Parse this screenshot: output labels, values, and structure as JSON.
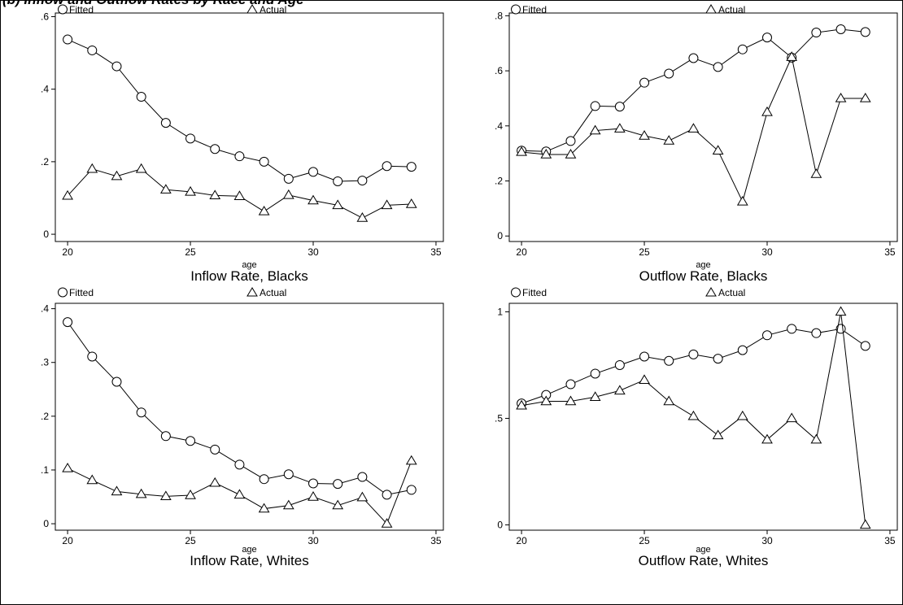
{
  "figure_title": "(b) Inflow and Outflow Rates by Race and Age",
  "axis_label_x": "age",
  "legend": {
    "fitted": "Fitted",
    "actual": "Actual"
  },
  "chart_data": [
    {
      "type": "line",
      "title": "Inflow Rate, Blacks",
      "xlabel": "age",
      "ylabel": "",
      "xlim": [
        19.5,
        35.3
      ],
      "ylim": [
        -0.02,
        0.61
      ],
      "x_ticks": [
        20,
        25,
        30,
        35
      ],
      "y_ticks": [
        0,
        0.2,
        0.4,
        0.6
      ],
      "y_tick_labels": [
        "0",
        ".2",
        ".4",
        ".6"
      ],
      "legend_position": "top",
      "grid": false,
      "x": [
        20,
        21,
        22,
        23,
        24,
        25,
        26,
        27,
        28,
        29,
        30,
        31,
        32,
        33,
        34
      ],
      "series": [
        {
          "name": "Fitted",
          "marker": "circle",
          "values": [
            0.537,
            0.507,
            0.463,
            0.379,
            0.307,
            0.264,
            0.235,
            0.215,
            0.2,
            0.153,
            0.172,
            0.146,
            0.148,
            0.188,
            0.186
          ]
        },
        {
          "name": "Actual",
          "marker": "triangle",
          "values": [
            0.106,
            0.18,
            0.16,
            0.18,
            0.123,
            0.117,
            0.107,
            0.105,
            0.063,
            0.108,
            0.093,
            0.08,
            0.045,
            0.08,
            0.083
          ]
        }
      ]
    },
    {
      "type": "line",
      "title": "Outflow Rate, Blacks",
      "xlabel": "age",
      "ylabel": "",
      "xlim": [
        19.5,
        35.3
      ],
      "ylim": [
        -0.02,
        0.81
      ],
      "x_ticks": [
        20,
        25,
        30,
        35
      ],
      "y_ticks": [
        0,
        0.2,
        0.4,
        0.6,
        0.8
      ],
      "y_tick_labels": [
        "0",
        ".2",
        ".4",
        ".6",
        ".8"
      ],
      "legend_position": "top",
      "grid": false,
      "x": [
        20,
        21,
        22,
        23,
        24,
        25,
        26,
        27,
        28,
        29,
        30,
        31,
        32,
        33,
        34
      ],
      "series": [
        {
          "name": "Fitted",
          "marker": "circle",
          "values": [
            0.31,
            0.307,
            0.345,
            0.472,
            0.47,
            0.557,
            0.59,
            0.646,
            0.614,
            0.678,
            0.721,
            0.648,
            0.739,
            0.751,
            0.741
          ]
        },
        {
          "name": "Actual",
          "marker": "triangle",
          "values": [
            0.305,
            0.296,
            0.296,
            0.383,
            0.39,
            0.364,
            0.346,
            0.39,
            0.31,
            0.125,
            0.45,
            0.65,
            0.225,
            0.5,
            0.5
          ]
        }
      ]
    },
    {
      "type": "line",
      "title": "Inflow Rate, Whites",
      "xlabel": "age",
      "ylabel": "",
      "xlim": [
        19.5,
        35.3
      ],
      "ylim": [
        -0.012,
        0.41
      ],
      "x_ticks": [
        20,
        25,
        30,
        35
      ],
      "y_ticks": [
        0,
        0.1,
        0.2,
        0.3,
        0.4
      ],
      "y_tick_labels": [
        "0",
        ".1",
        ".2",
        ".3",
        ".4"
      ],
      "legend_position": "top",
      "grid": false,
      "x": [
        20,
        21,
        22,
        23,
        24,
        25,
        26,
        27,
        28,
        29,
        30,
        31,
        32,
        33,
        34
      ],
      "series": [
        {
          "name": "Fitted",
          "marker": "circle",
          "values": [
            0.375,
            0.311,
            0.264,
            0.207,
            0.163,
            0.154,
            0.138,
            0.11,
            0.083,
            0.092,
            0.075,
            0.074,
            0.087,
            0.054,
            0.063
          ]
        },
        {
          "name": "Actual",
          "marker": "triangle",
          "values": [
            0.103,
            0.081,
            0.06,
            0.055,
            0.051,
            0.053,
            0.076,
            0.054,
            0.028,
            0.034,
            0.05,
            0.034,
            0.049,
            0.0,
            0.117
          ]
        }
      ]
    },
    {
      "type": "line",
      "title": "Outflow Rate, Whites",
      "xlabel": "age",
      "ylabel": "",
      "xlim": [
        19.5,
        35.3
      ],
      "ylim": [
        -0.025,
        1.04
      ],
      "x_ticks": [
        20,
        25,
        30,
        35
      ],
      "y_ticks": [
        0,
        0.5,
        1
      ],
      "y_tick_labels": [
        "0",
        ".5",
        "1"
      ],
      "legend_position": "top",
      "grid": false,
      "x": [
        20,
        21,
        22,
        23,
        24,
        25,
        26,
        27,
        28,
        29,
        30,
        31,
        32,
        33,
        34
      ],
      "series": [
        {
          "name": "Fitted",
          "marker": "circle",
          "values": [
            0.57,
            0.61,
            0.66,
            0.71,
            0.75,
            0.79,
            0.77,
            0.8,
            0.78,
            0.82,
            0.89,
            0.92,
            0.9,
            0.92,
            0.84
          ]
        },
        {
          "name": "Actual",
          "marker": "triangle",
          "values": [
            0.56,
            0.58,
            0.58,
            0.6,
            0.63,
            0.68,
            0.58,
            0.51,
            0.42,
            0.51,
            0.4,
            0.5,
            0.4,
            1.0,
            0.0
          ]
        }
      ]
    }
  ]
}
